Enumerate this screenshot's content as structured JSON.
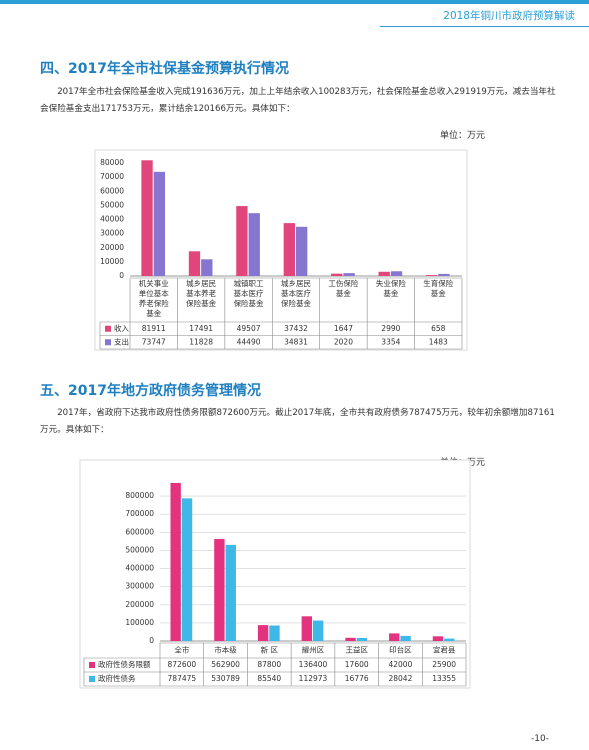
{
  "header": "2018年铜川市政府预算解读",
  "section1": {
    "title": "四、2017年全市社保基金预算执行情况",
    "text": "2017年全市社会保险基金收入完成191636万元，加上上年结余收入100283万元，社会保险基金总收入291919万元，减去当年社会保险基金支出171753万元，累计结余120166万元。具体如下：",
    "unit": "单位：万元"
  },
  "section2": {
    "title": "五、2017年地方政府债务管理情况",
    "text": "2017年，省政府下达我市政府性债务限额872600万元。截止2017年底，全市共有政府债务787475万元，较年初余额增加87161万元。具体如下：",
    "unit": "单位：万元"
  },
  "page_number": "-10-",
  "chart_data": [
    {
      "type": "bar",
      "categories": [
        "机关事业单位基本养老保险基金",
        "城乡居民基本养老保险基金",
        "城镇职工基本医疗保险基金",
        "城乡居民基本医疗保险基金",
        "工伤保险基金",
        "失业保险基金",
        "生育保险基金"
      ],
      "series": [
        {
          "name": "收入",
          "color": "#e0457b",
          "values": [
            81911,
            17491,
            49507,
            37432,
            1647,
            2990,
            658
          ]
        },
        {
          "name": "支出",
          "color": "#8676d2",
          "values": [
            73747,
            11828,
            44490,
            34831,
            2020,
            3354,
            1483
          ]
        }
      ],
      "ylim": [
        0,
        80000
      ],
      "yticks": [
        0,
        10000,
        20000,
        30000,
        40000,
        50000,
        60000,
        70000,
        80000
      ],
      "grid": false
    },
    {
      "type": "bar",
      "categories": [
        "全市",
        "市本级",
        "新 区",
        "耀州区",
        "王益区",
        "印台区",
        "宜君县"
      ],
      "series": [
        {
          "name": "政府性债务限额",
          "color": "#e3337f",
          "values": [
            872600,
            562900,
            87800,
            136400,
            17600,
            42000,
            25900
          ]
        },
        {
          "name": "政府性债务",
          "color": "#3db8e8",
          "values": [
            787475,
            530789,
            85540,
            112973,
            16776,
            28042,
            13355
          ]
        }
      ],
      "ylim": [
        0,
        900000
      ],
      "yticks": [
        0,
        100000,
        200000,
        300000,
        400000,
        500000,
        600000,
        700000,
        800000
      ],
      "grid": true
    }
  ]
}
